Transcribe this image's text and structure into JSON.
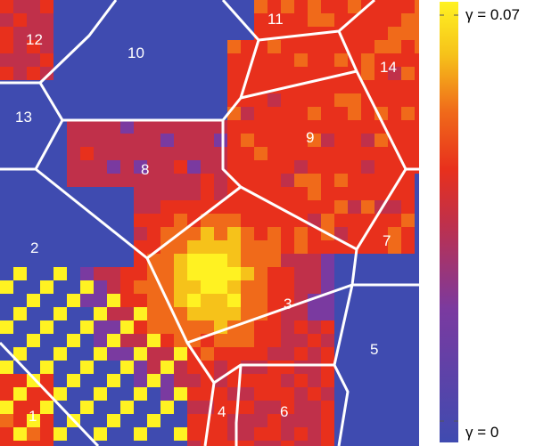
{
  "grains": [
    {
      "id": "1"
    },
    {
      "id": "2"
    },
    {
      "id": "3"
    },
    {
      "id": "4"
    },
    {
      "id": "5"
    },
    {
      "id": "6"
    },
    {
      "id": "7"
    },
    {
      "id": "8"
    },
    {
      "id": "9"
    },
    {
      "id": "10"
    },
    {
      "id": "11"
    },
    {
      "id": "12"
    },
    {
      "id": "13"
    },
    {
      "id": "14"
    }
  ],
  "colorbar": {
    "max_label": "γ = 0.07",
    "min_label": "γ = 0",
    "min_value": 0,
    "max_value": 0.07,
    "colors": [
      "#3f4bb0",
      "#7a3aa0",
      "#c0304a",
      "#e8301c",
      "#f06a1a",
      "#f6c21a",
      "#fff222"
    ]
  },
  "colors": {
    "boundary": "#ffffff",
    "low": "#3f4bb0",
    "high": "#fff222"
  }
}
